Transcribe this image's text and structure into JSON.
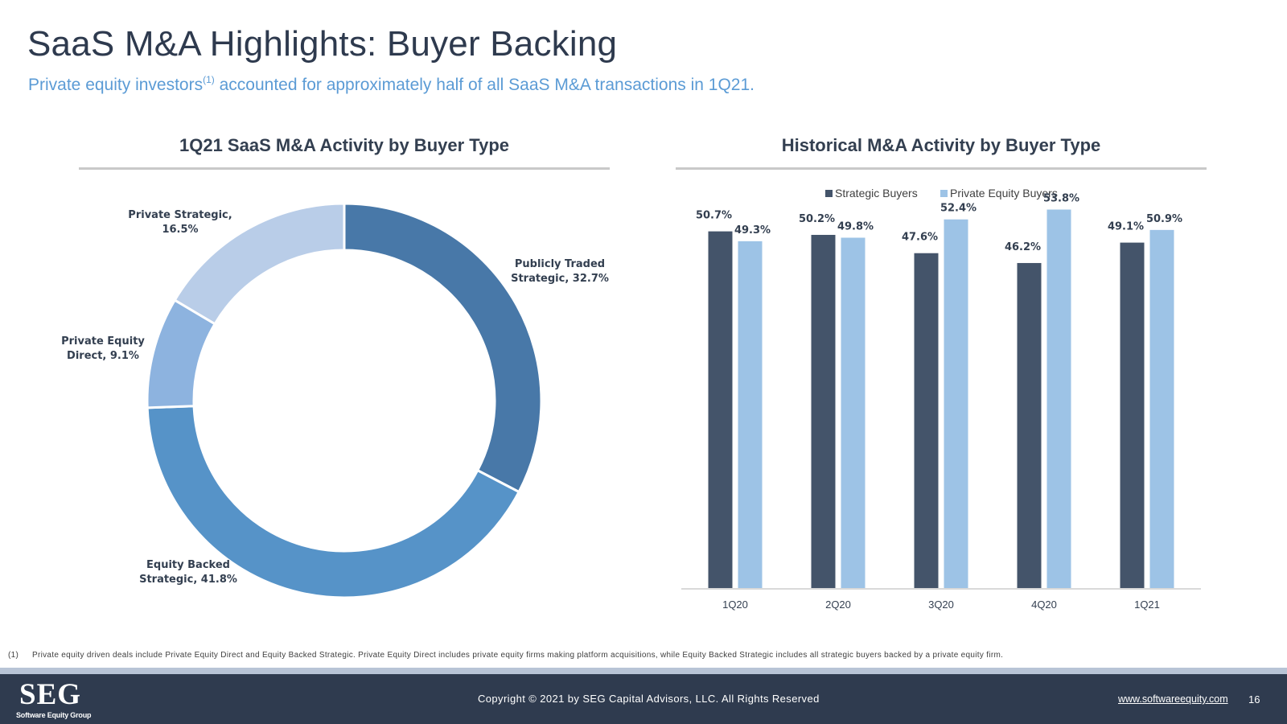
{
  "header": {
    "title": "SaaS M&A Highlights: Buyer Backing",
    "subtitle_before": "Private equity investors",
    "subtitle_sup": "(1)",
    "subtitle_after": " accounted for approximately half of all SaaS M&A transactions in 1Q21."
  },
  "left_panel": {
    "title": "1Q21 SaaS M&A Activity by Buyer Type"
  },
  "right_panel": {
    "title": "Historical M&A Activity by Buyer Type"
  },
  "chart_data": [
    {
      "type": "pie",
      "variant": "donut",
      "title": "1Q21 SaaS M&A Activity by Buyer Type",
      "slices": [
        {
          "name": "Publicly Traded Strategic",
          "value": 32.7,
          "label_lines": [
            "Publicly Traded",
            "Strategic, 32.7%"
          ],
          "color": "#4878a8"
        },
        {
          "name": "Equity Backed Strategic",
          "value": 41.8,
          "label_lines": [
            "Equity Backed",
            "Strategic, 41.8%"
          ],
          "color": "#5693c8"
        },
        {
          "name": "Private Equity Direct",
          "value": 9.1,
          "label_lines": [
            "Private Equity",
            "Direct, 9.1%"
          ],
          "color": "#8db3df"
        },
        {
          "name": "Private Strategic",
          "value": 16.5,
          "label_lines": [
            "Private Strategic,",
            "16.5%"
          ],
          "color": "#b9cde8"
        }
      ]
    },
    {
      "type": "bar",
      "title": "Historical M&A Activity by Buyer Type",
      "categories": [
        "1Q20",
        "2Q20",
        "3Q20",
        "4Q20",
        "1Q21"
      ],
      "series": [
        {
          "name": "Strategic Buyers",
          "values": [
            50.7,
            50.2,
            47.6,
            46.2,
            49.1
          ],
          "labels": [
            "50.7%",
            "50.2%",
            "47.6%",
            "46.2%",
            "49.1%"
          ],
          "color": "#44546a"
        },
        {
          "name": "Private Equity Buyers",
          "values": [
            49.3,
            49.8,
            52.4,
            53.8,
            50.9
          ],
          "labels": [
            "49.3%",
            "49.8%",
            "52.4%",
            "53.8%",
            "50.9%"
          ],
          "color": "#9dc3e6"
        }
      ],
      "ylim": [
        0,
        55
      ],
      "grid": false,
      "legend_position": "top-center"
    }
  ],
  "footnote": {
    "number": "(1)",
    "text": "Private equity driven deals include Private Equity Direct and Equity Backed Strategic. Private Equity Direct includes private equity firms making platform acquisitions, while Equity Backed Strategic includes all strategic buyers backed by a private equity firm."
  },
  "footer": {
    "logo": "SEG",
    "logo_sub": "Software Equity Group",
    "copyright": "Copyright © 2021 by SEG Capital Advisors, LLC. All Rights Reserved",
    "website": "www.softwareequity.com",
    "page_number": "16"
  }
}
